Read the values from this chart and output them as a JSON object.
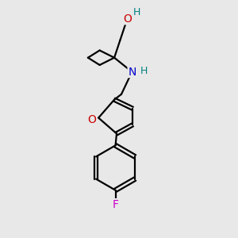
{
  "background_color": "#e8e8e8",
  "bond_color": "#000000",
  "atom_colors": {
    "O": "#cc0000",
    "N": "#0000cc",
    "F": "#cc00cc",
    "H_teal": "#008080"
  },
  "font_size": 10,
  "line_width": 1.6,
  "figsize": [
    3.0,
    3.0
  ],
  "dpi": 100
}
